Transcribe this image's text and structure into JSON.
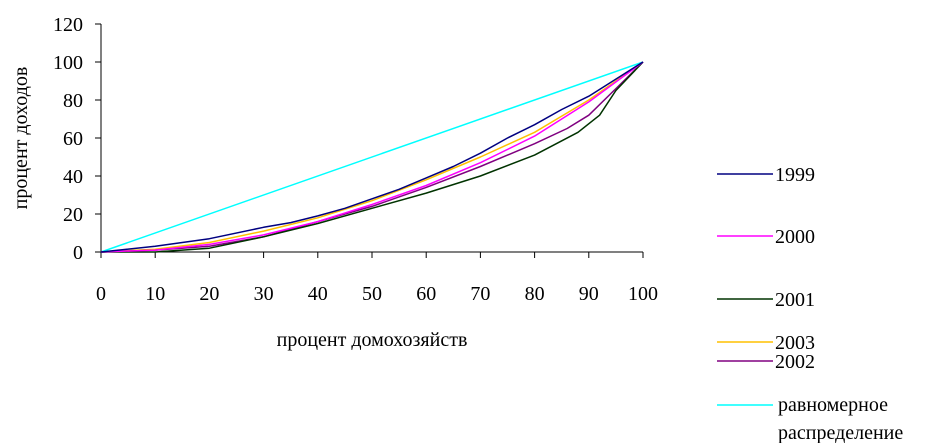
{
  "chart_data": {
    "type": "line",
    "title": "",
    "xlabel": "процент домохозяйств",
    "ylabel": "процент доходов",
    "xlim": [
      0,
      100
    ],
    "ylim": [
      0,
      120
    ],
    "xticks": [
      0,
      10,
      20,
      30,
      40,
      50,
      60,
      70,
      80,
      90,
      100
    ],
    "yticks": [
      0,
      20,
      40,
      60,
      80,
      100,
      120
    ],
    "grid": false,
    "legend_position": "right",
    "series": [
      {
        "name": "1999",
        "color": "#000080",
        "x": [
          0,
          10,
          20,
          30,
          35,
          40,
          45,
          50,
          55,
          60,
          65,
          70,
          75,
          80,
          85,
          90,
          95,
          100
        ],
        "y": [
          0,
          3,
          7,
          13,
          15.5,
          19,
          23,
          28,
          33,
          39,
          45,
          52,
          60,
          67,
          75,
          82,
          91,
          100
        ]
      },
      {
        "name": "2000",
        "color": "#ff00ff",
        "x": [
          0,
          10,
          20,
          30,
          40,
          50,
          60,
          70,
          80,
          90,
          100
        ],
        "y": [
          0,
          1,
          4,
          9,
          16,
          25,
          35,
          47,
          61,
          79,
          100
        ]
      },
      {
        "name": "2001",
        "color": "#003300",
        "x": [
          0,
          10,
          20,
          30,
          40,
          50,
          60,
          70,
          80,
          88,
          92,
          95,
          100
        ],
        "y": [
          0,
          0,
          2,
          8,
          15,
          23,
          31,
          40,
          51,
          63,
          72,
          85,
          100
        ]
      },
      {
        "name": "2002",
        "color": "#800080",
        "x": [
          0,
          10,
          20,
          30,
          40,
          50,
          60,
          70,
          80,
          86,
          90,
          95,
          100
        ],
        "y": [
          0,
          1,
          3,
          8,
          16,
          24,
          34,
          45,
          57,
          65,
          72,
          86,
          100
        ]
      },
      {
        "name": "2003",
        "color": "#ffc000",
        "x": [
          0,
          10,
          20,
          30,
          40,
          50,
          60,
          70,
          80,
          90,
          100
        ],
        "y": [
          0,
          1.5,
          5,
          11,
          18,
          27,
          38,
          50,
          63,
          80,
          100
        ]
      },
      {
        "name": "равномерное распределение",
        "legend_lines": [
          "равномерное",
          "распределение"
        ],
        "color": "#00ffff",
        "x": [
          0,
          100
        ],
        "y": [
          0,
          100
        ]
      }
    ]
  }
}
